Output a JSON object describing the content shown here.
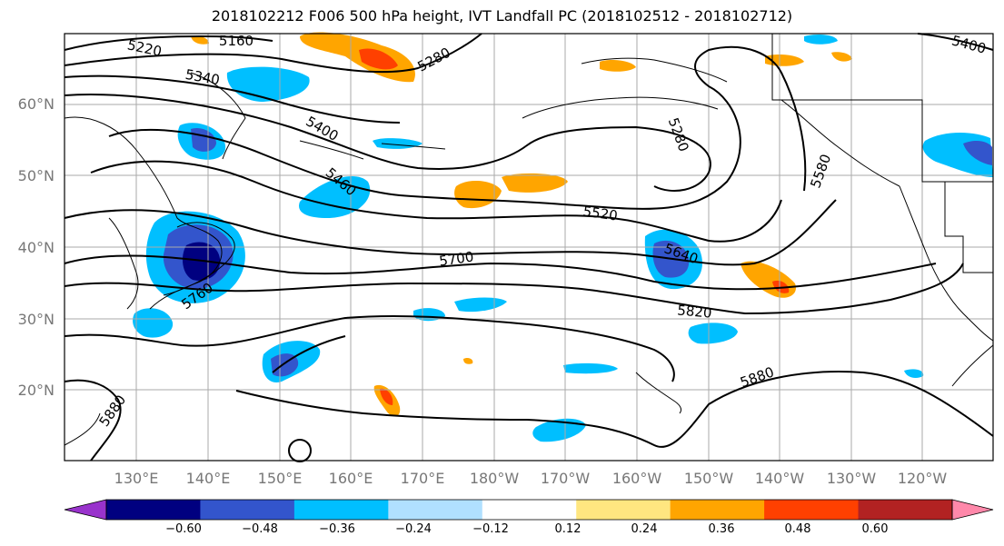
{
  "title": "2018102212 F006 500 hPa height, IVT Landfall PC (2018102512 - 2018102712)",
  "lat_labels": [
    "60°N",
    "50°N",
    "40°N",
    "30°N",
    "20°N"
  ],
  "lon_labels": [
    "130°E",
    "140°E",
    "150°E",
    "160°E",
    "170°E",
    "180°W",
    "170°W",
    "160°W",
    "150°W",
    "140°W",
    "130°W",
    "120°W"
  ],
  "contour_labels": [
    "5160",
    "5220",
    "5340",
    "5280",
    "5400",
    "5460",
    "5280",
    "5580",
    "5520",
    "5700",
    "5640",
    "5760",
    "5820",
    "5880",
    "5880",
    "5400"
  ],
  "colorbar": {
    "ticks": [
      "−0.60",
      "−0.48",
      "−0.36",
      "−0.24",
      "−0.12",
      "0.12",
      "0.24",
      "0.36",
      "0.48",
      "0.60"
    ],
    "colors": [
      "#9933cc",
      "#000080",
      "#3355cc",
      "#00bfff",
      "#b0e0ff",
      "#ffffff",
      "#ffe680",
      "#ffa500",
      "#ff4000",
      "#b22222",
      "#ff88aa"
    ]
  }
}
